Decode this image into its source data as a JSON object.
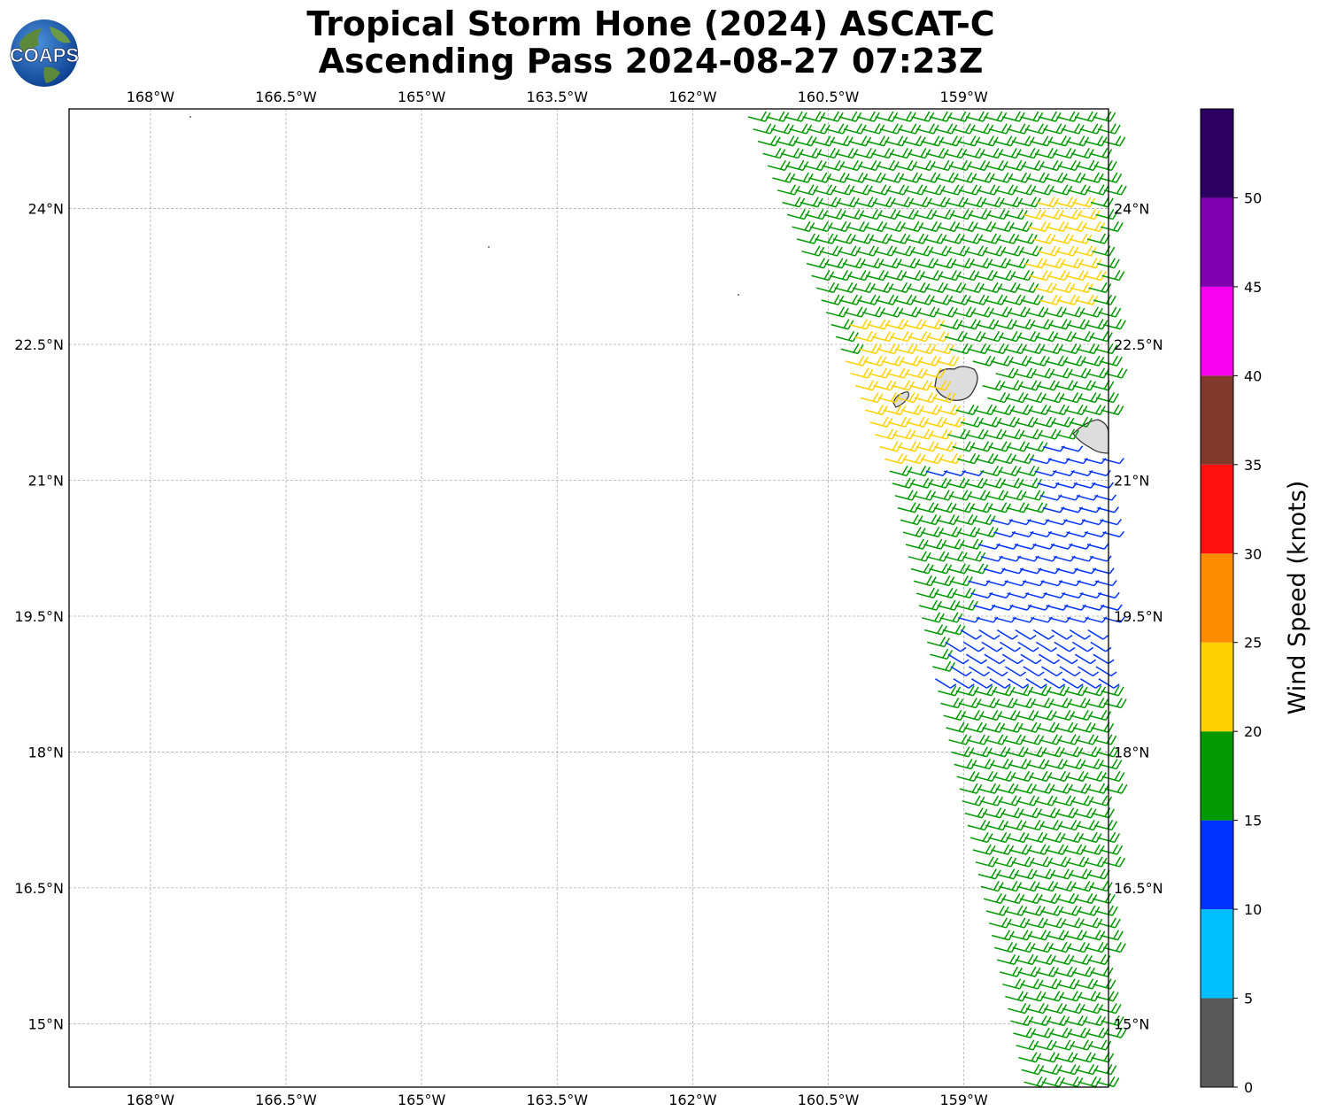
{
  "title": {
    "line1": "Tropical Storm Hone (2024) ASCAT-C",
    "line2": "Ascending Pass 2024-08-27 07:23Z"
  },
  "logo": {
    "text": "COAPS",
    "icon": "globe-logo"
  },
  "map": {
    "lon_range": [
      -168.9,
      -157.4
    ],
    "lat_range": [
      14.3,
      25.1
    ],
    "lon_ticks": [
      -168,
      -166.5,
      -165,
      -163.5,
      -162,
      -160.5,
      -159
    ],
    "lon_tick_labels": [
      "168°W",
      "166.5°W",
      "165°W",
      "163.5°W",
      "162°W",
      "160.5°W",
      "159°W"
    ],
    "lat_ticks": [
      24,
      22.5,
      21,
      19.5,
      18,
      16.5,
      15
    ],
    "lat_tick_labels": [
      "24°N",
      "22.5°N",
      "21°N",
      "19.5°N",
      "18°N",
      "16.5°N",
      "15°N"
    ],
    "grid": true
  },
  "colorbar": {
    "label": "Wind Speed (knots)",
    "ticks": [
      "0",
      "5",
      "10",
      "15",
      "20",
      "25",
      "30",
      "35",
      "40",
      "45",
      "50"
    ],
    "colors": [
      "#595959",
      "#00bfff",
      "#0033ff",
      "#009900",
      "#ffd100",
      "#ff8c00",
      "#ff1010",
      "#80392b",
      "#f800f0",
      "#8000b0",
      "#2b0060"
    ]
  },
  "chart_data": {
    "type": "wind-barbs",
    "swath_left_edge": [
      [
        -161.5,
        25.1
      ],
      [
        -159.9,
        21.1
      ],
      [
        -158.4,
        14.3
      ]
    ],
    "swath_right_edge_lon": -157.4,
    "speed_regions": [
      {
        "speed_class": "15-20",
        "color": "#009900",
        "area": "most of swath"
      },
      {
        "speed_class": "20-25",
        "color": "#ffd100",
        "area": "west of Kauai near 21.5-22.8°N, -161 to -160°W; small patch near 23.5-24°N, -158°W"
      },
      {
        "speed_class": "10-15",
        "color": "#0033ff",
        "area": "east side near 19-21°N, -159.5 to -157.4°W"
      }
    ],
    "islands": [
      "Kauai",
      "Niihau",
      "Oahu"
    ]
  }
}
